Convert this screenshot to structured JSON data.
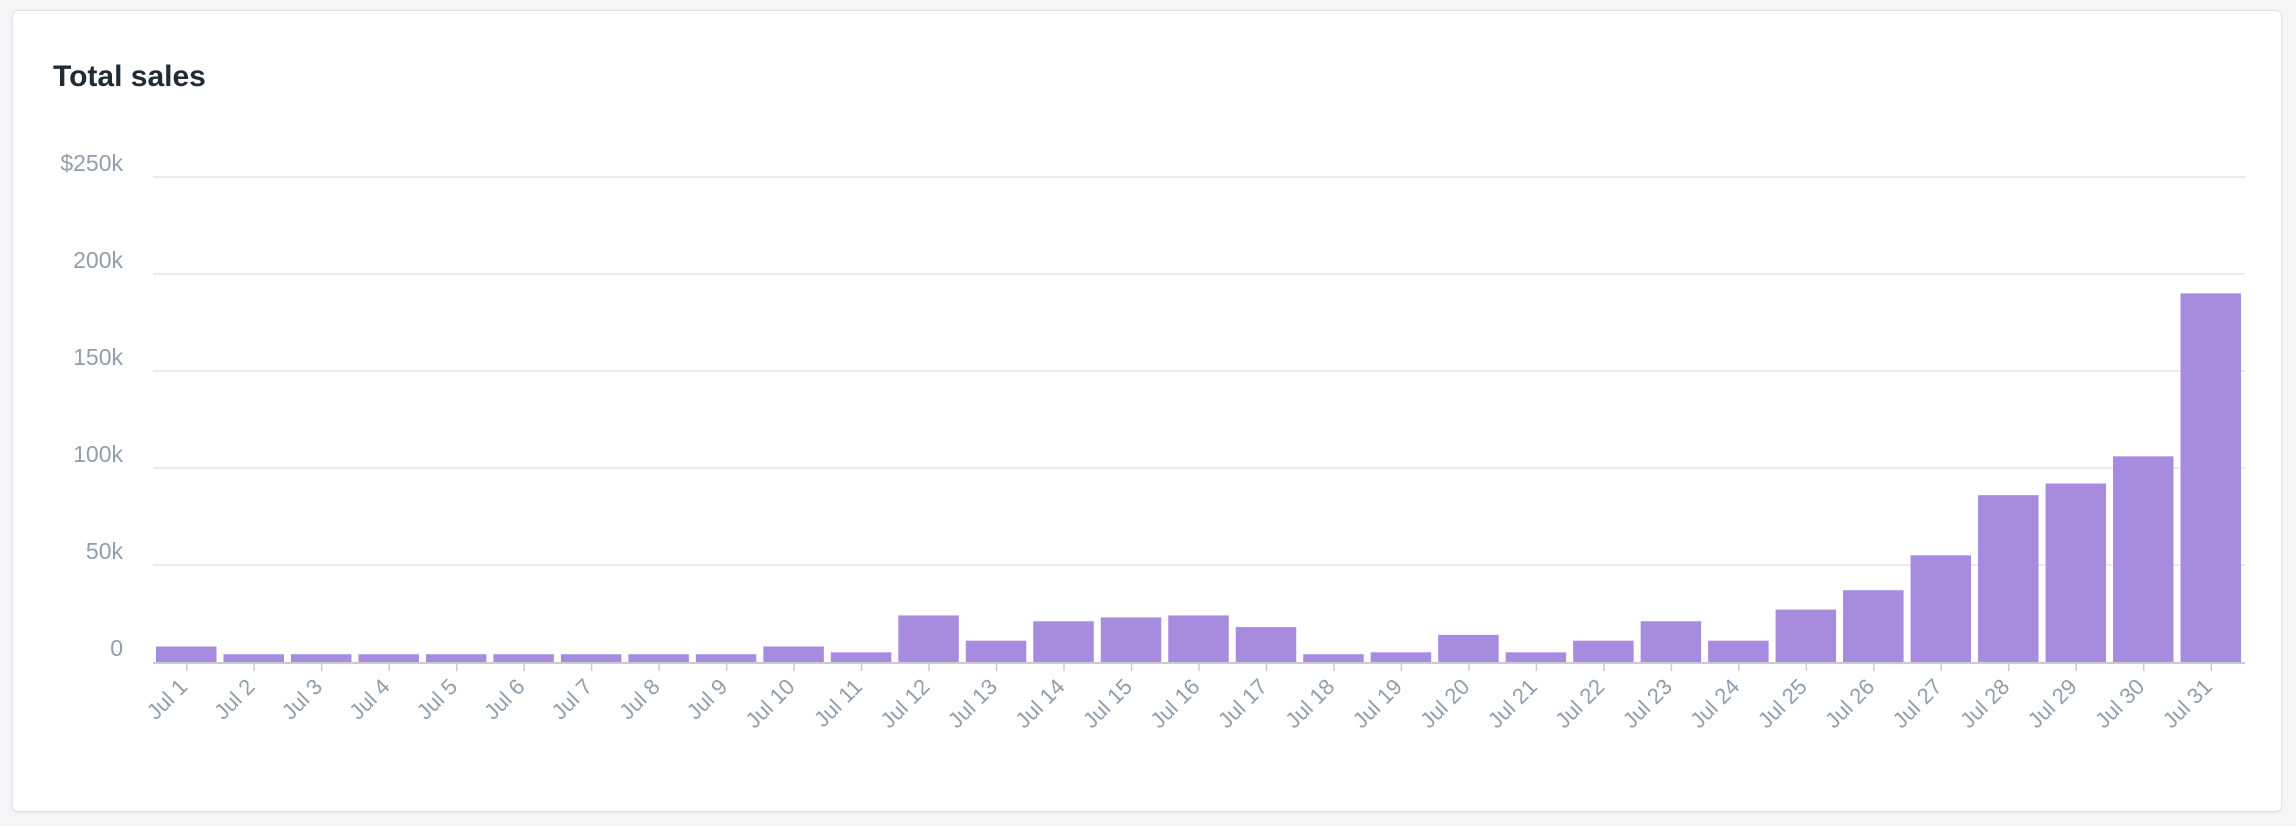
{
  "card": {
    "title": "Total sales"
  },
  "chart_data": {
    "type": "bar",
    "title": "Total sales",
    "xlabel": "",
    "ylabel": "",
    "categories": [
      "Jul 1",
      "Jul 2",
      "Jul 3",
      "Jul 4",
      "Jul 5",
      "Jul 6",
      "Jul 7",
      "Jul 8",
      "Jul 9",
      "Jul 10",
      "Jul 11",
      "Jul 12",
      "Jul 13",
      "Jul 14",
      "Jul 15",
      "Jul 16",
      "Jul 17",
      "Jul 18",
      "Jul 19",
      "Jul 20",
      "Jul 21",
      "Jul 22",
      "Jul 23",
      "Jul 24",
      "Jul 25",
      "Jul 26",
      "Jul 27",
      "Jul 28",
      "Jul 29",
      "Jul 30",
      "Jul 31"
    ],
    "values": [
      8000,
      4000,
      4000,
      4000,
      4000,
      4000,
      4000,
      4000,
      4000,
      8000,
      5000,
      24000,
      11000,
      21000,
      23000,
      24000,
      18000,
      4000,
      5000,
      14000,
      5000,
      11000,
      21000,
      11000,
      27000,
      37000,
      55000,
      86000,
      92000,
      106000,
      190000
    ],
    "ylim": [
      0,
      250000
    ],
    "yticks": [
      0,
      50000,
      100000,
      150000,
      200000,
      250000
    ],
    "ytick_labels": [
      "0",
      "50k",
      "100k",
      "150k",
      "200k",
      "$250k"
    ],
    "grid": true,
    "legend": "none",
    "bar_color": "#a78bde",
    "grid_color": "#dfe3e8",
    "tick_color": "#919eab"
  }
}
